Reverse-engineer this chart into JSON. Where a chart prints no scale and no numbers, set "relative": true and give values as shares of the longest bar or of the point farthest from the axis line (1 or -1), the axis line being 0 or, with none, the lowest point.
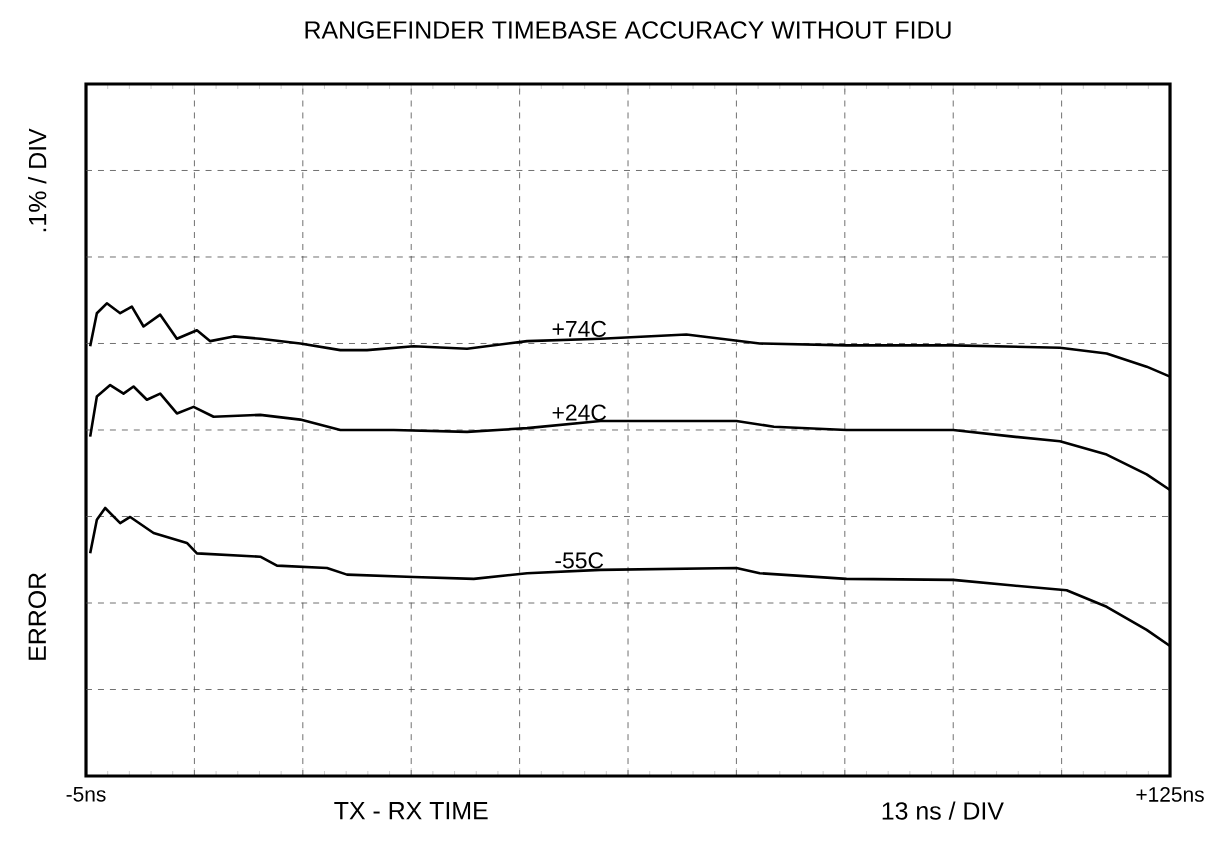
{
  "chart_data": {
    "type": "line",
    "title": "RANGEFINDER TIMEBASE ACCURACY WITHOUT FIDU",
    "xlabel": "TX - RX  TIME",
    "ylabel": "ERROR",
    "annotations": [
      ".1% / DIV",
      "13 ns / DIV"
    ],
    "xlim": [
      -5,
      125
    ],
    "xticks": [
      {
        "value": -5,
        "label": "-5ns"
      },
      {
        "value": 8,
        "label": null
      },
      {
        "value": 21,
        "label": null
      },
      {
        "value": 34,
        "label": null
      },
      {
        "value": 47,
        "label": null
      },
      {
        "value": 60,
        "label": null
      },
      {
        "value": 73,
        "label": null
      },
      {
        "value": 86,
        "label": null
      },
      {
        "value": 99,
        "label": null
      },
      {
        "value": 112,
        "label": null
      },
      {
        "value": 125,
        "label": "+125ns"
      }
    ],
    "relative": true,
    "grid": true,
    "series": [
      {
        "name": "+74C",
        "color": "#000000",
        "x": [
          -4.5,
          -3.7,
          -2.5,
          -0.9,
          0.5,
          1.9,
          3.9,
          5.9,
          8.3,
          9.9,
          12.7,
          15.9,
          20.7,
          25.5,
          28.7,
          34.3,
          40.7,
          47.9,
          56.7,
          67.0,
          75.8,
          86.2,
          99.0,
          111.8,
          117.4,
          122.2,
          125.0
        ],
        "values": [
          0.909,
          0.979,
          1.0,
          0.979,
          0.993,
          0.951,
          0.976,
          0.925,
          0.943,
          0.92,
          0.93,
          0.925,
          0.915,
          0.901,
          0.901,
          0.909,
          0.904,
          0.92,
          0.925,
          0.934,
          0.915,
          0.911,
          0.911,
          0.906,
          0.894,
          0.866,
          0.845
        ]
      },
      {
        "name": "+24C",
        "color": "#000000",
        "x": [
          -4.5,
          -3.7,
          -2.1,
          -0.5,
          0.7,
          2.3,
          3.9,
          5.9,
          7.9,
          10.3,
          15.9,
          20.7,
          25.5,
          31.9,
          40.7,
          47.9,
          56.7,
          67.0,
          73.0,
          77.5,
          86.2,
          99.0,
          106.2,
          111.8,
          117.4,
          122.2,
          125.0
        ],
        "values": [
          0.718,
          0.803,
          0.827,
          0.809,
          0.824,
          0.796,
          0.809,
          0.767,
          0.781,
          0.76,
          0.764,
          0.754,
          0.732,
          0.732,
          0.728,
          0.736,
          0.751,
          0.751,
          0.751,
          0.739,
          0.732,
          0.732,
          0.718,
          0.708,
          0.68,
          0.638,
          0.605
        ]
      },
      {
        "name": "-55C",
        "color": "#000000",
        "x": [
          -4.5,
          -3.7,
          -2.7,
          -0.9,
          0.3,
          3.1,
          7.1,
          8.3,
          15.9,
          17.9,
          23.9,
          26.3,
          34.3,
          41.5,
          47.9,
          56.7,
          73.0,
          75.8,
          86.2,
          99.0,
          106.2,
          112.6,
          117.4,
          122.2,
          125.0
        ],
        "values": [
          0.471,
          0.542,
          0.567,
          0.535,
          0.548,
          0.514,
          0.493,
          0.471,
          0.464,
          0.445,
          0.44,
          0.426,
          0.421,
          0.417,
          0.429,
          0.436,
          0.44,
          0.429,
          0.417,
          0.415,
          0.403,
          0.393,
          0.358,
          0.309,
          0.275
        ]
      }
    ]
  }
}
